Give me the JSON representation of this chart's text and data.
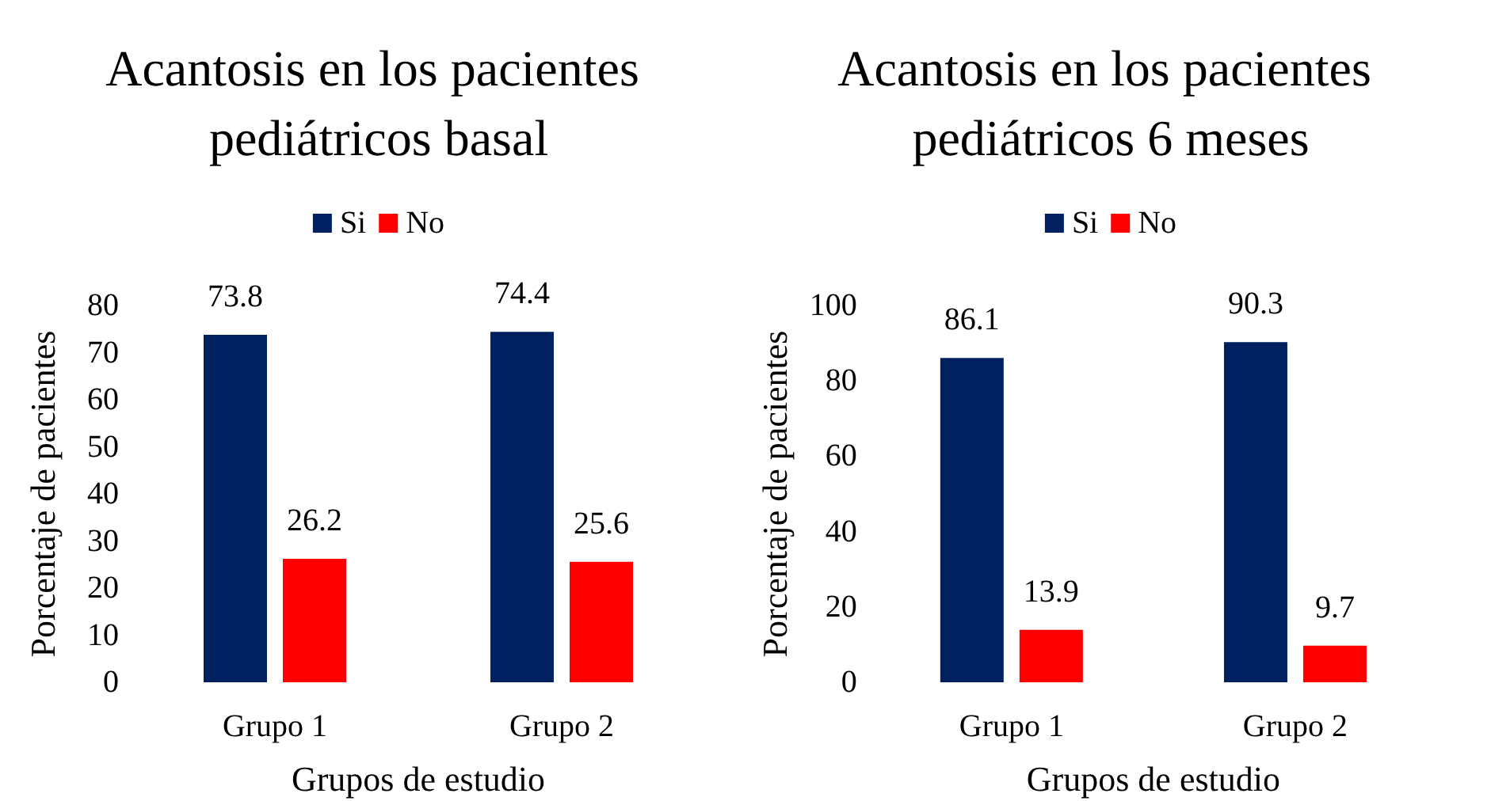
{
  "chart_data": [
    {
      "type": "bar",
      "title": "Acantosis en los pacientes pediátricos basal",
      "xlabel": "Grupos de estudio",
      "ylabel": "Porcentaje de pacientes",
      "categories": [
        "Grupo 1",
        "Grupo 2"
      ],
      "series": [
        {
          "name": "Si",
          "color": "#002060",
          "values": [
            73.8,
            74.4
          ]
        },
        {
          "name": "No",
          "color": "#ff0000",
          "values": [
            26.2,
            25.6
          ]
        }
      ],
      "ylim": [
        0,
        80
      ],
      "yticks": [
        0,
        10,
        20,
        30,
        40,
        50,
        60,
        70,
        80
      ],
      "grid": false,
      "legend": "top",
      "data_labels": true
    },
    {
      "type": "bar",
      "title": "Acantosis en los pacientes pediátricos 6 meses",
      "xlabel": "Grupos de estudio",
      "ylabel": "Porcentaje de pacientes",
      "categories": [
        "Grupo 1",
        "Grupo 2"
      ],
      "series": [
        {
          "name": "Si",
          "color": "#002060",
          "values": [
            86.1,
            90.3
          ]
        },
        {
          "name": "No",
          "color": "#ff0000",
          "values": [
            13.9,
            9.7
          ]
        }
      ],
      "ylim": [
        0,
        100
      ],
      "yticks": [
        0,
        20,
        40,
        60,
        80,
        100
      ],
      "grid": false,
      "legend": "top",
      "data_labels": true
    }
  ]
}
